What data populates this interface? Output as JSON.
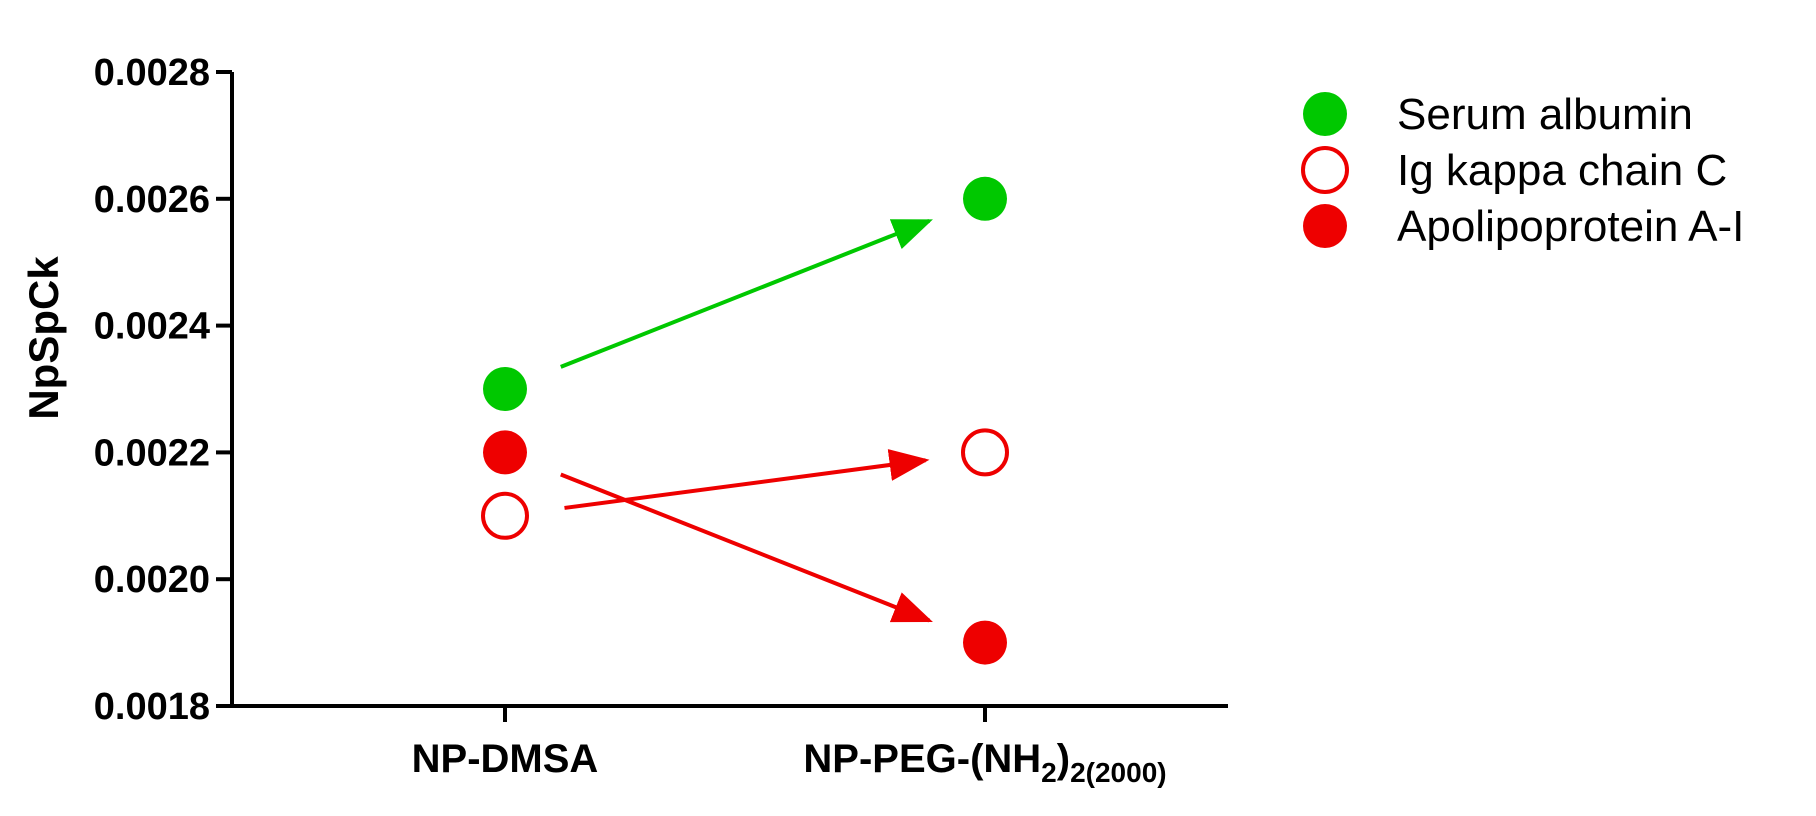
{
  "chart_data": {
    "type": "scatter",
    "title": "",
    "xlabel": "",
    "ylabel": "NpSpCk",
    "ylim": [
      0.0018,
      0.0028
    ],
    "yticks": [
      "0.0018",
      "0.0020",
      "0.0022",
      "0.0024",
      "0.0026",
      "0.0028"
    ],
    "categories": [
      {
        "main": "NP-DMSA",
        "sub1": "",
        "sub2": "",
        "tail": ""
      },
      {
        "main": "NP-PEG-(NH",
        "sub1": "2",
        "sub2": "2(2000)",
        "tail": ")"
      }
    ],
    "grid": false,
    "legend_position": "top-right",
    "series": [
      {
        "name": "Serum albumin",
        "values": [
          0.0023,
          0.0026
        ],
        "color": "#00c800",
        "marker": "filled-circle"
      },
      {
        "name": "Ig kappa chain C",
        "values": [
          0.0021,
          0.0022
        ],
        "color": "#ee0000",
        "marker": "open-circle"
      },
      {
        "name": "Apolipoprotein A-I",
        "values": [
          0.0022,
          0.0019
        ],
        "color": "#ee0000",
        "marker": "filled-circle"
      }
    ]
  }
}
